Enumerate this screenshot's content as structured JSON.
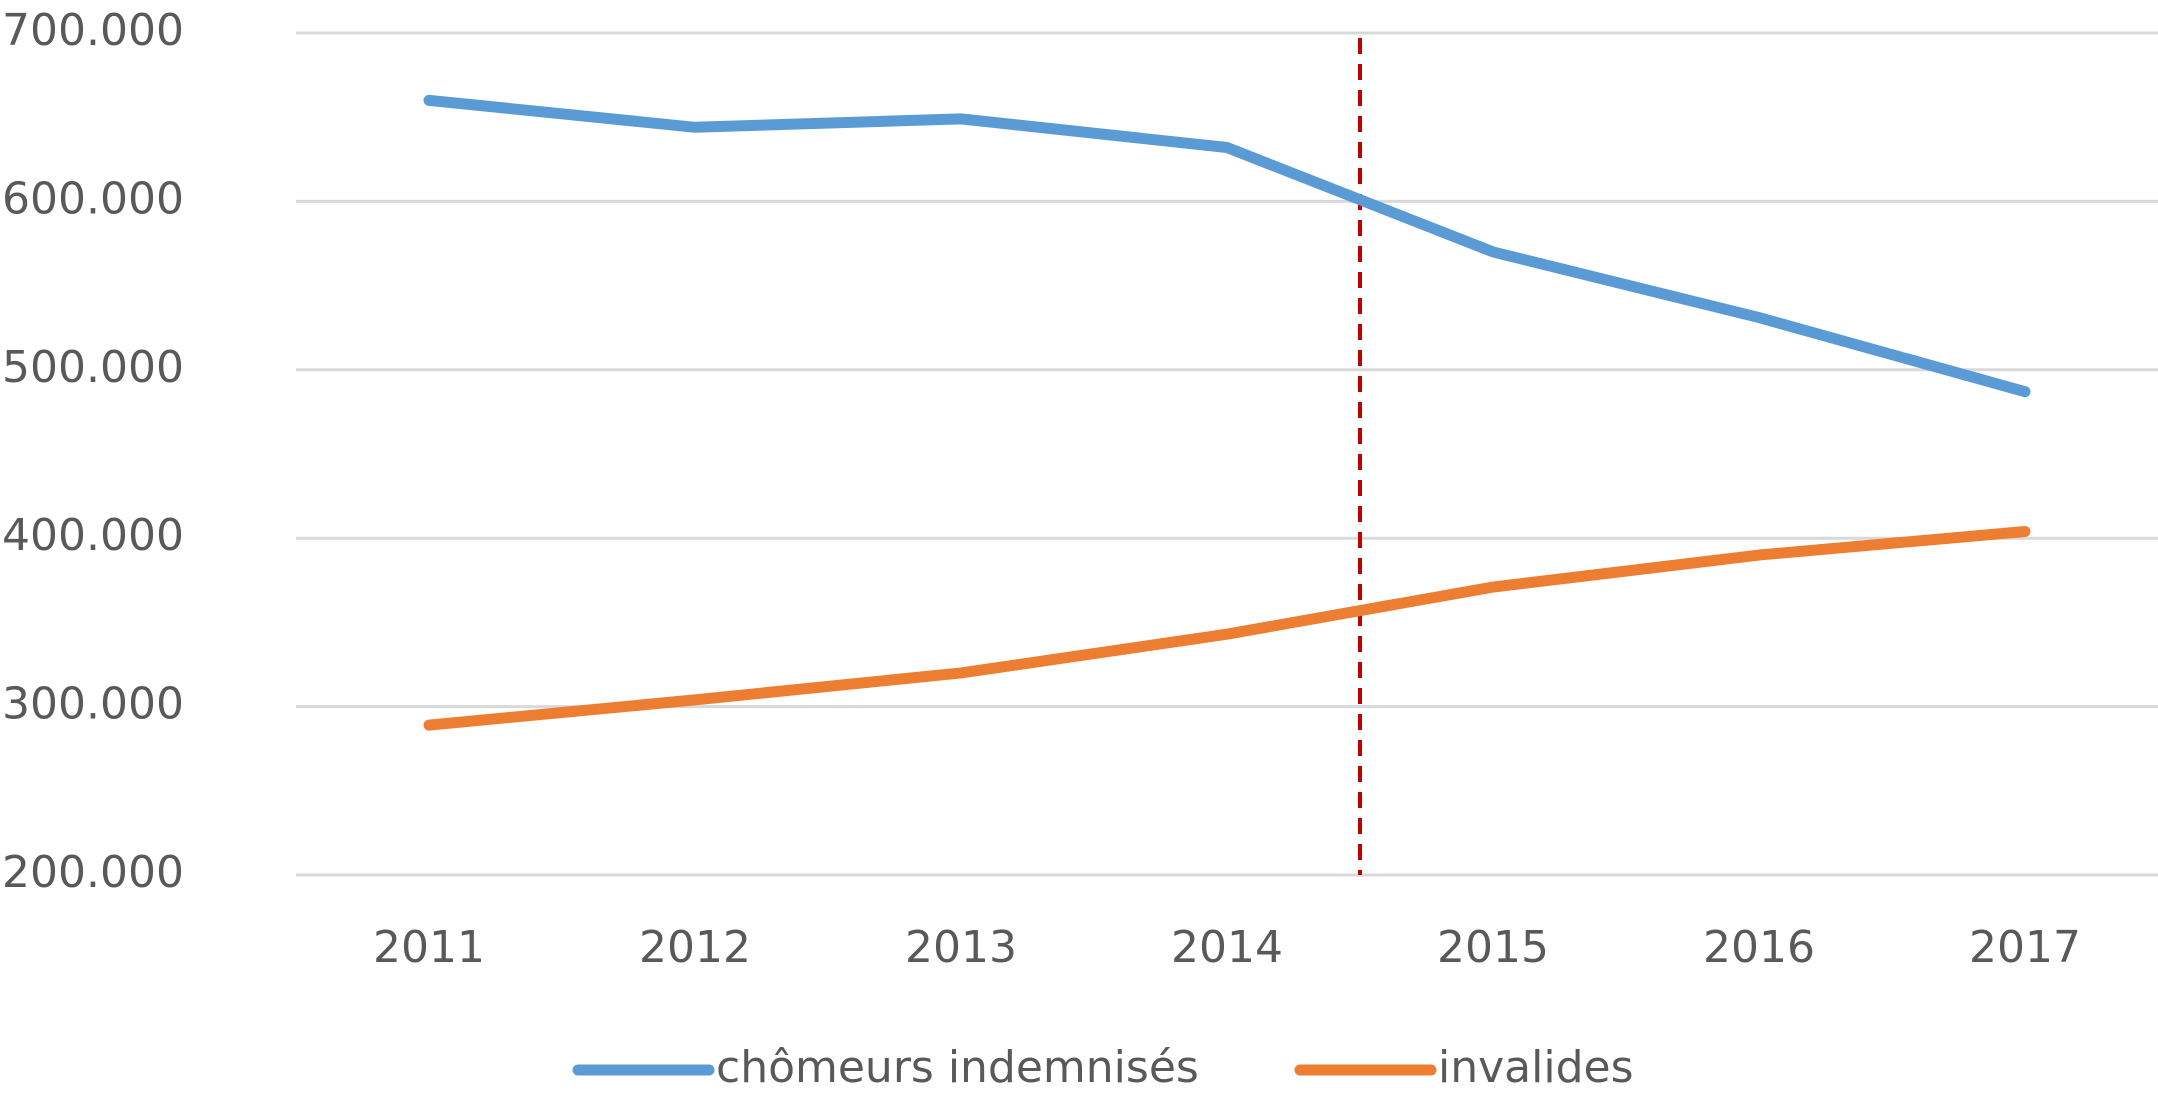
{
  "chart_data": {
    "type": "line",
    "categories": [
      "2011",
      "2012",
      "2013",
      "2014",
      "2015",
      "2016",
      "2017"
    ],
    "series": [
      {
        "name": "chômeurs indemnisés",
        "color": "#5b9bd5",
        "values": [
          660000,
          644000,
          649000,
          632000,
          570000,
          531000,
          487000
        ]
      },
      {
        "name": "invalides",
        "color": "#ed7d31",
        "values": [
          289000,
          304000,
          320000,
          343000,
          371000,
          390000,
          404000
        ]
      }
    ],
    "ylim": [
      200000,
      700000
    ],
    "yticks": [
      {
        "value": 200000,
        "label": "200.000"
      },
      {
        "value": 300000,
        "label": "300.000"
      },
      {
        "value": 400000,
        "label": "400.000"
      },
      {
        "value": 500000,
        "label": "500.000"
      },
      {
        "value": 600000,
        "label": "600.000"
      },
      {
        "value": 700000,
        "label": "700.000"
      }
    ],
    "grid": true,
    "legend": "bottom"
  }
}
